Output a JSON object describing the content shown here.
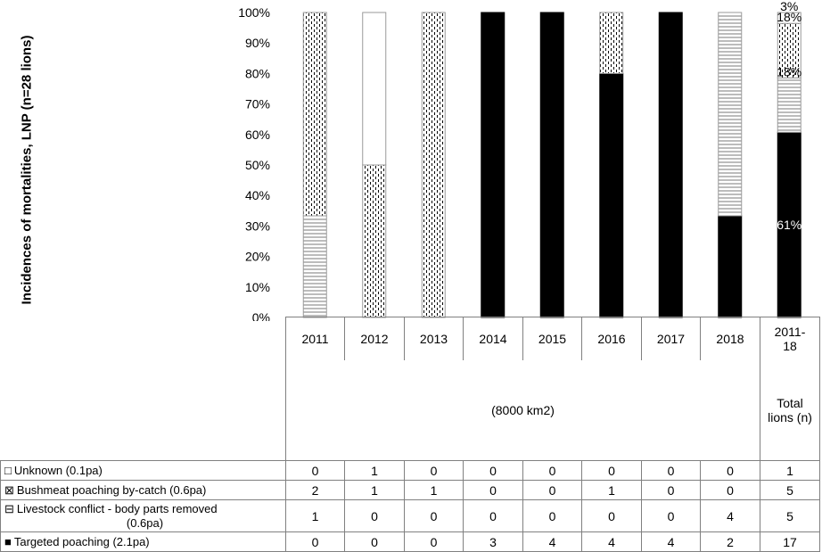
{
  "chart_data": {
    "type": "bar",
    "stacked": true,
    "percent": true,
    "ylabel": "Incidences of mortalities, LNP (n=28 lions)",
    "yticks": [
      "0%",
      "10%",
      "20%",
      "30%",
      "40%",
      "50%",
      "60%",
      "70%",
      "80%",
      "90%",
      "100%"
    ],
    "ylim": [
      0,
      100
    ],
    "categories": [
      "2011",
      "2012",
      "2013",
      "2014",
      "2015",
      "2016",
      "2017",
      "2018",
      "2011-18"
    ],
    "area_label": "(8000 km2)",
    "total_label": "Total lions (n)",
    "series": [
      {
        "name": "Targeted poaching (2.1pa)",
        "symbol": "■",
        "color": "#000000",
        "pattern": "solid",
        "values": [
          0,
          0,
          0,
          3,
          4,
          4,
          4,
          2,
          17
        ]
      },
      {
        "name": "Livestock conflict - body parts removed (0.6pa)",
        "symbol": "⊟",
        "color": "#ffffff",
        "pattern": "hlines",
        "values": [
          1,
          0,
          0,
          0,
          0,
          0,
          0,
          4,
          5
        ]
      },
      {
        "name": "Bushmeat poaching by-catch (0.6pa)",
        "symbol": "⊠",
        "color": "#ffffff",
        "pattern": "dots",
        "values": [
          2,
          1,
          1,
          0,
          0,
          1,
          0,
          0,
          5
        ]
      },
      {
        "name": "Unknown (0.1pa)",
        "symbol": "□",
        "color": "#ffffff",
        "pattern": "empty",
        "values": [
          0,
          1,
          0,
          0,
          0,
          0,
          0,
          0,
          1
        ]
      }
    ],
    "data_labels": {
      "2011-18": [
        "61%",
        "18%",
        "18%",
        "3%"
      ]
    },
    "grid": false
  },
  "table_rows": [
    {
      "symbol": "□",
      "label": "Unknown (0.1pa)",
      "values": [
        "0",
        "1",
        "0",
        "0",
        "0",
        "0",
        "0",
        "0",
        "1"
      ]
    },
    {
      "symbol": "⊠",
      "label": "Bushmeat poaching by-catch (0.6pa)",
      "values": [
        "2",
        "1",
        "1",
        "0",
        "0",
        "1",
        "0",
        "0",
        "5"
      ]
    },
    {
      "symbol": "⊟",
      "label": "Livestock conflict - body parts removed (0.6pa)",
      "values": [
        "1",
        "0",
        "0",
        "0",
        "0",
        "0",
        "0",
        "4",
        "5"
      ]
    },
    {
      "symbol": "■",
      "label": "Targeted poaching (2.1pa)",
      "values": [
        "0",
        "0",
        "0",
        "3",
        "4",
        "4",
        "4",
        "2",
        "17"
      ]
    }
  ]
}
